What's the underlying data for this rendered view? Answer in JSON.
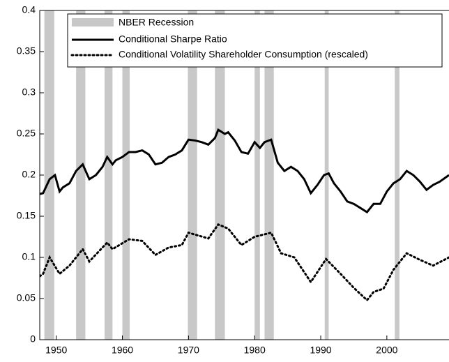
{
  "chart_data": {
    "type": "line",
    "xlim": [
      1947.5,
      2009.4
    ],
    "xticks": [
      1950,
      1960,
      1970,
      1980,
      1990,
      2000
    ],
    "ylim": [
      0,
      0.4
    ],
    "yticks": [
      0,
      0.05,
      0.1,
      0.15,
      0.2,
      0.25,
      0.3,
      0.35,
      0.4
    ],
    "recessions": {
      "name": "NBER Recession",
      "color": "#c8c8c8",
      "periods": [
        [
          1948.2,
          1949.7
        ],
        [
          1953.0,
          1954.4
        ],
        [
          1957.3,
          1958.5
        ],
        [
          1960.0,
          1961.1
        ],
        [
          1969.9,
          1971.3
        ],
        [
          1974.0,
          1975.5
        ],
        [
          1980.0,
          1980.8
        ],
        [
          1981.5,
          1982.9
        ],
        [
          1990.6,
          1991.2
        ],
        [
          2001.2,
          2001.9
        ]
      ]
    },
    "series": [
      {
        "name": "Conditional Sharpe Ratio",
        "color": "#000000",
        "style": "solid",
        "x": [
          1947.5,
          1948,
          1949,
          1949.8,
          1950.5,
          1951,
          1952,
          1953,
          1954,
          1955,
          1956,
          1957,
          1957.7,
          1958.5,
          1959,
          1960,
          1961,
          1962,
          1963,
          1964,
          1965,
          1966,
          1967,
          1968,
          1969,
          1970,
          1971,
          1972,
          1973,
          1974,
          1974.5,
          1975.5,
          1976,
          1977,
          1978,
          1979,
          1980,
          1980.8,
          1981.5,
          1982.5,
          1983.5,
          1984.5,
          1985.5,
          1986.5,
          1987.5,
          1988.5,
          1989.5,
          1990.5,
          1991.2,
          1992,
          1993,
          1994,
          1995,
          1996,
          1997,
          1998,
          1999,
          2000,
          2001,
          2002,
          2003,
          2004,
          2005,
          2006,
          2007,
          2008,
          2009.4
        ],
        "values": [
          0.177,
          0.178,
          0.195,
          0.2,
          0.18,
          0.185,
          0.19,
          0.205,
          0.213,
          0.195,
          0.2,
          0.21,
          0.222,
          0.213,
          0.218,
          0.222,
          0.228,
          0.228,
          0.23,
          0.225,
          0.213,
          0.215,
          0.222,
          0.225,
          0.23,
          0.243,
          0.242,
          0.24,
          0.237,
          0.245,
          0.255,
          0.25,
          0.252,
          0.242,
          0.228,
          0.226,
          0.24,
          0.233,
          0.24,
          0.243,
          0.215,
          0.205,
          0.21,
          0.205,
          0.195,
          0.178,
          0.188,
          0.2,
          0.202,
          0.19,
          0.18,
          0.168,
          0.165,
          0.16,
          0.155,
          0.165,
          0.165,
          0.18,
          0.19,
          0.195,
          0.205,
          0.2,
          0.192,
          0.182,
          0.188,
          0.192,
          0.2
        ]
      },
      {
        "name": "Conditional Volatility Shareholder Consumption (rescaled)",
        "color": "#000000",
        "style": "dotted",
        "x": [
          1947.5,
          1948,
          1949,
          1950.5,
          1952,
          1954,
          1955,
          1957.7,
          1958.5,
          1961,
          1963,
          1965,
          1967,
          1969,
          1970,
          1973,
          1974.5,
          1976,
          1978,
          1980,
          1982.5,
          1984,
          1986,
          1988.5,
          1990.8,
          1993,
          1995,
          1997,
          1998,
          1999.5,
          2001,
          2003,
          2005,
          2007,
          2009.4
        ],
        "values": [
          0.077,
          0.08,
          0.1,
          0.08,
          0.09,
          0.11,
          0.095,
          0.118,
          0.11,
          0.122,
          0.12,
          0.103,
          0.112,
          0.115,
          0.13,
          0.123,
          0.14,
          0.135,
          0.115,
          0.125,
          0.13,
          0.105,
          0.1,
          0.07,
          0.098,
          0.08,
          0.063,
          0.048,
          0.058,
          0.062,
          0.085,
          0.105,
          0.097,
          0.09,
          0.1
        ]
      }
    ]
  }
}
